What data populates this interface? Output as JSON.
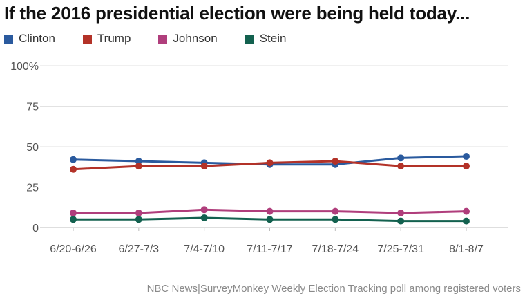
{
  "title": "If the 2016 presidential election were being held today...",
  "source": "NBC News|SurveyMonkey Weekly Election Tracking poll among registered voters",
  "chart_data": {
    "type": "line",
    "title": "If the 2016 presidential election were being held today...",
    "xlabel": "",
    "ylabel": "",
    "ylim": [
      0,
      100
    ],
    "yticks": [
      "100%",
      "75",
      "50",
      "25",
      "0"
    ],
    "ytick_values": [
      100,
      75,
      50,
      25,
      0
    ],
    "grid": true,
    "legend_position": "top-left",
    "categories": [
      "6/20-6/26",
      "6/27-7/3",
      "7/4-7/10",
      "7/11-7/17",
      "7/18-7/24",
      "7/25-7/31",
      "8/1-8/7"
    ],
    "series": [
      {
        "name": "Clinton",
        "color": "#2a5a9e",
        "values": [
          42,
          41,
          40,
          39,
          39,
          43,
          44
        ]
      },
      {
        "name": "Trump",
        "color": "#b33228",
        "values": [
          36,
          38,
          38,
          40,
          41,
          38,
          38
        ]
      },
      {
        "name": "Johnson",
        "color": "#b03e7c",
        "values": [
          9,
          9,
          11,
          10,
          10,
          9,
          10
        ]
      },
      {
        "name": "Stein",
        "color": "#13614f",
        "values": [
          5,
          5,
          6,
          5,
          5,
          4,
          4
        ]
      }
    ]
  }
}
